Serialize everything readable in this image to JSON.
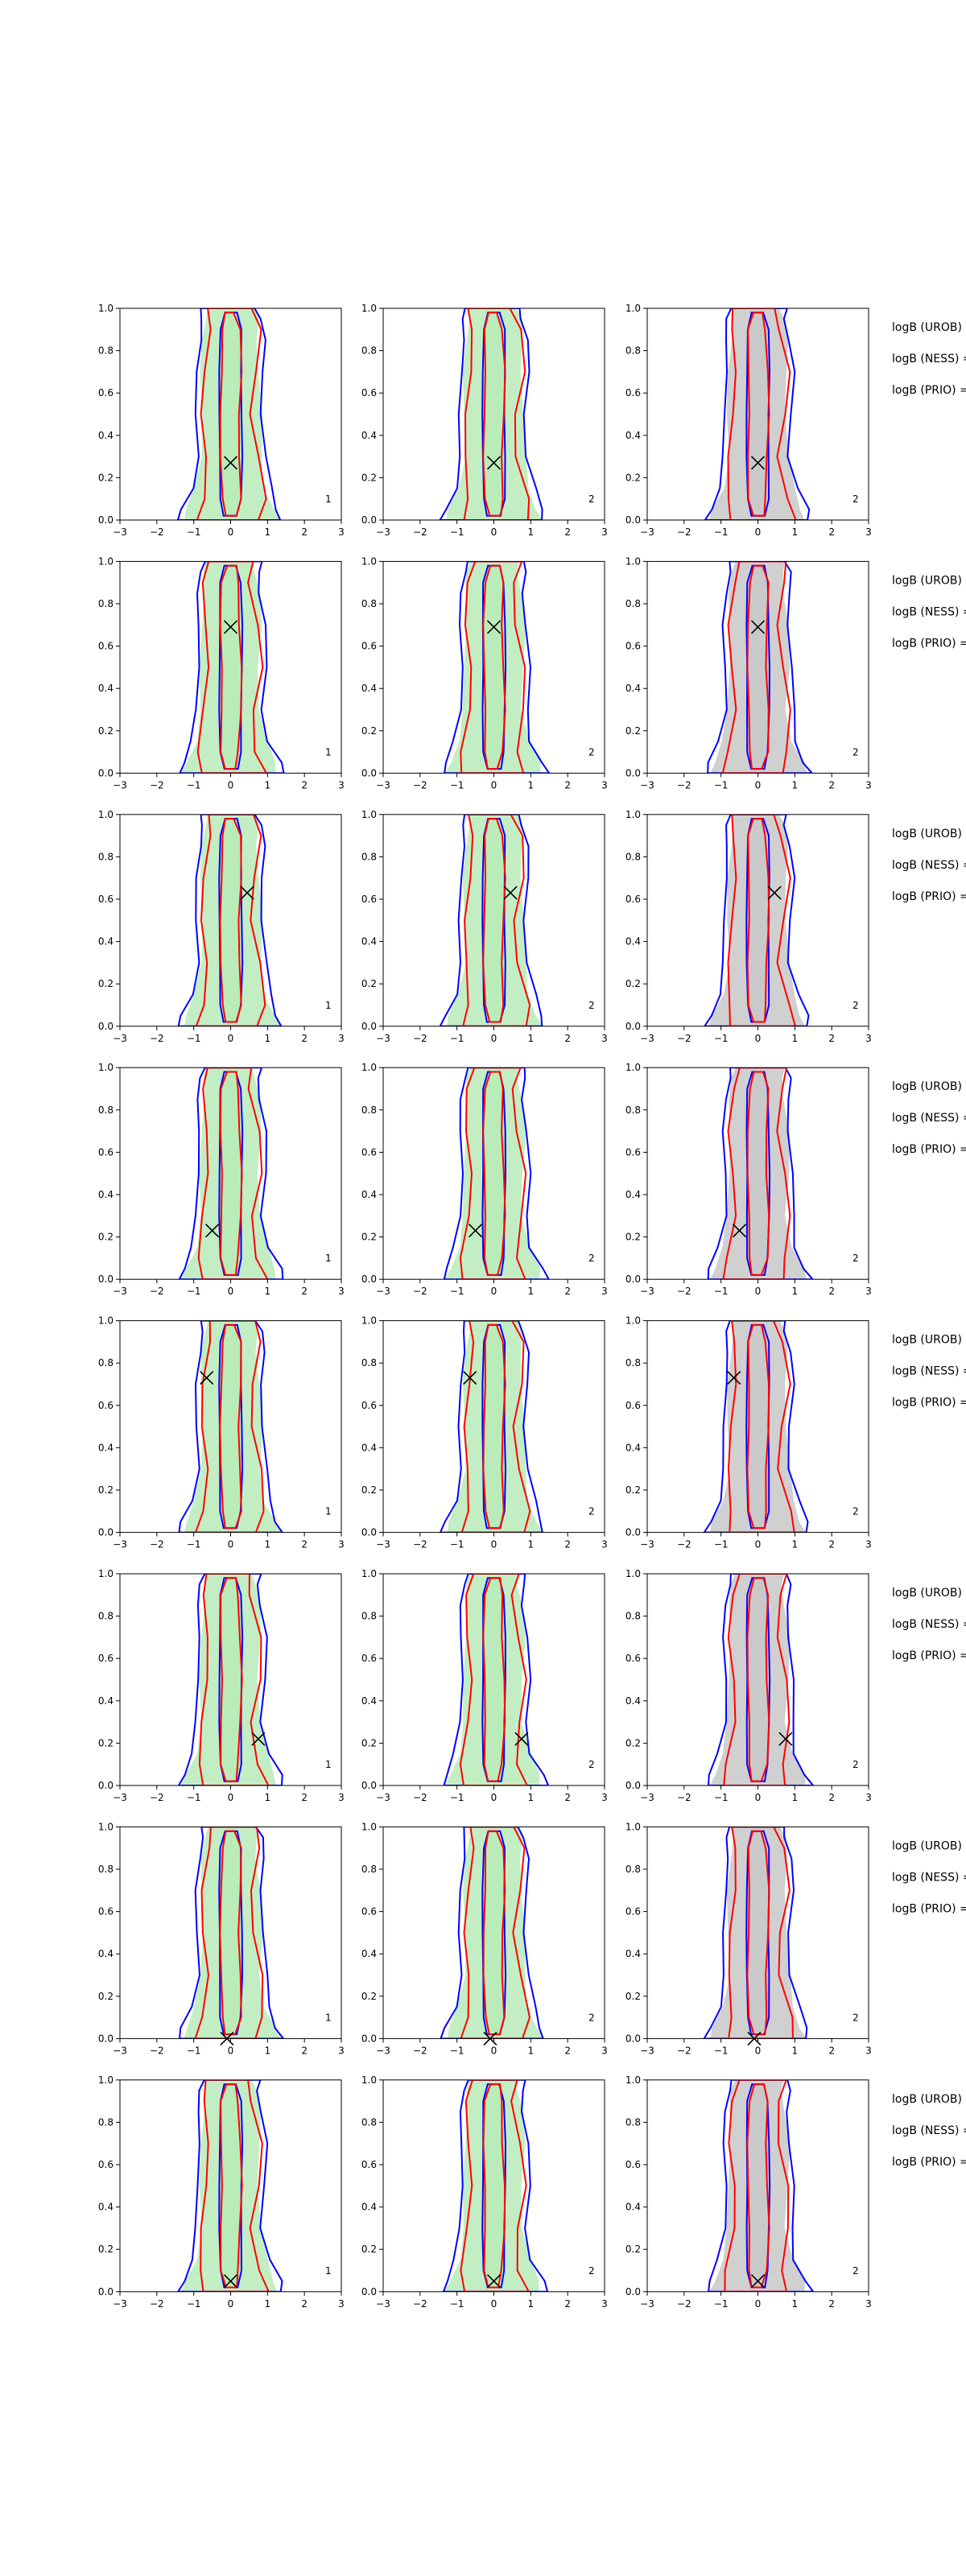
{
  "chart_data": {
    "type": "contour-grid",
    "rows": 8,
    "cols": 3,
    "xlim": [
      -3,
      3
    ],
    "ylim": [
      0,
      1
    ],
    "xticks": [
      -3,
      -2,
      -1,
      0,
      1,
      2,
      3
    ],
    "yticks": [
      0.0,
      0.2,
      0.4,
      0.6,
      0.8,
      1.0
    ],
    "xtick_labels": [
      "−3",
      "−2",
      "−1",
      "0",
      "1",
      "2",
      "3"
    ],
    "ytick_labels": [
      "0.0",
      "0.2",
      "0.4",
      "0.6",
      "0.8",
      "1.0"
    ],
    "panel_corner_labels": [
      "1",
      "2",
      "2"
    ],
    "side_labels": [
      "logB (UROB) =",
      "logB (NESS) =",
      "logB (PRIO) ="
    ],
    "colors": {
      "blue": "#0000ff",
      "red": "#ff0000",
      "green_fill": "#b8ebb8",
      "grey_fill": "#c8c8c8"
    },
    "markers": [
      {
        "x": 0.0,
        "y": 0.27
      },
      {
        "x": 0.0,
        "y": 0.69
      },
      {
        "x": 0.45,
        "y": 0.63
      },
      {
        "x": -0.5,
        "y": 0.23
      },
      {
        "x": -0.65,
        "y": 0.73
      },
      {
        "x": 0.75,
        "y": 0.22
      },
      {
        "x": -0.1,
        "y": 0.0
      },
      {
        "x": 0.0,
        "y": 0.05
      }
    ],
    "marker_symbol": "x"
  }
}
